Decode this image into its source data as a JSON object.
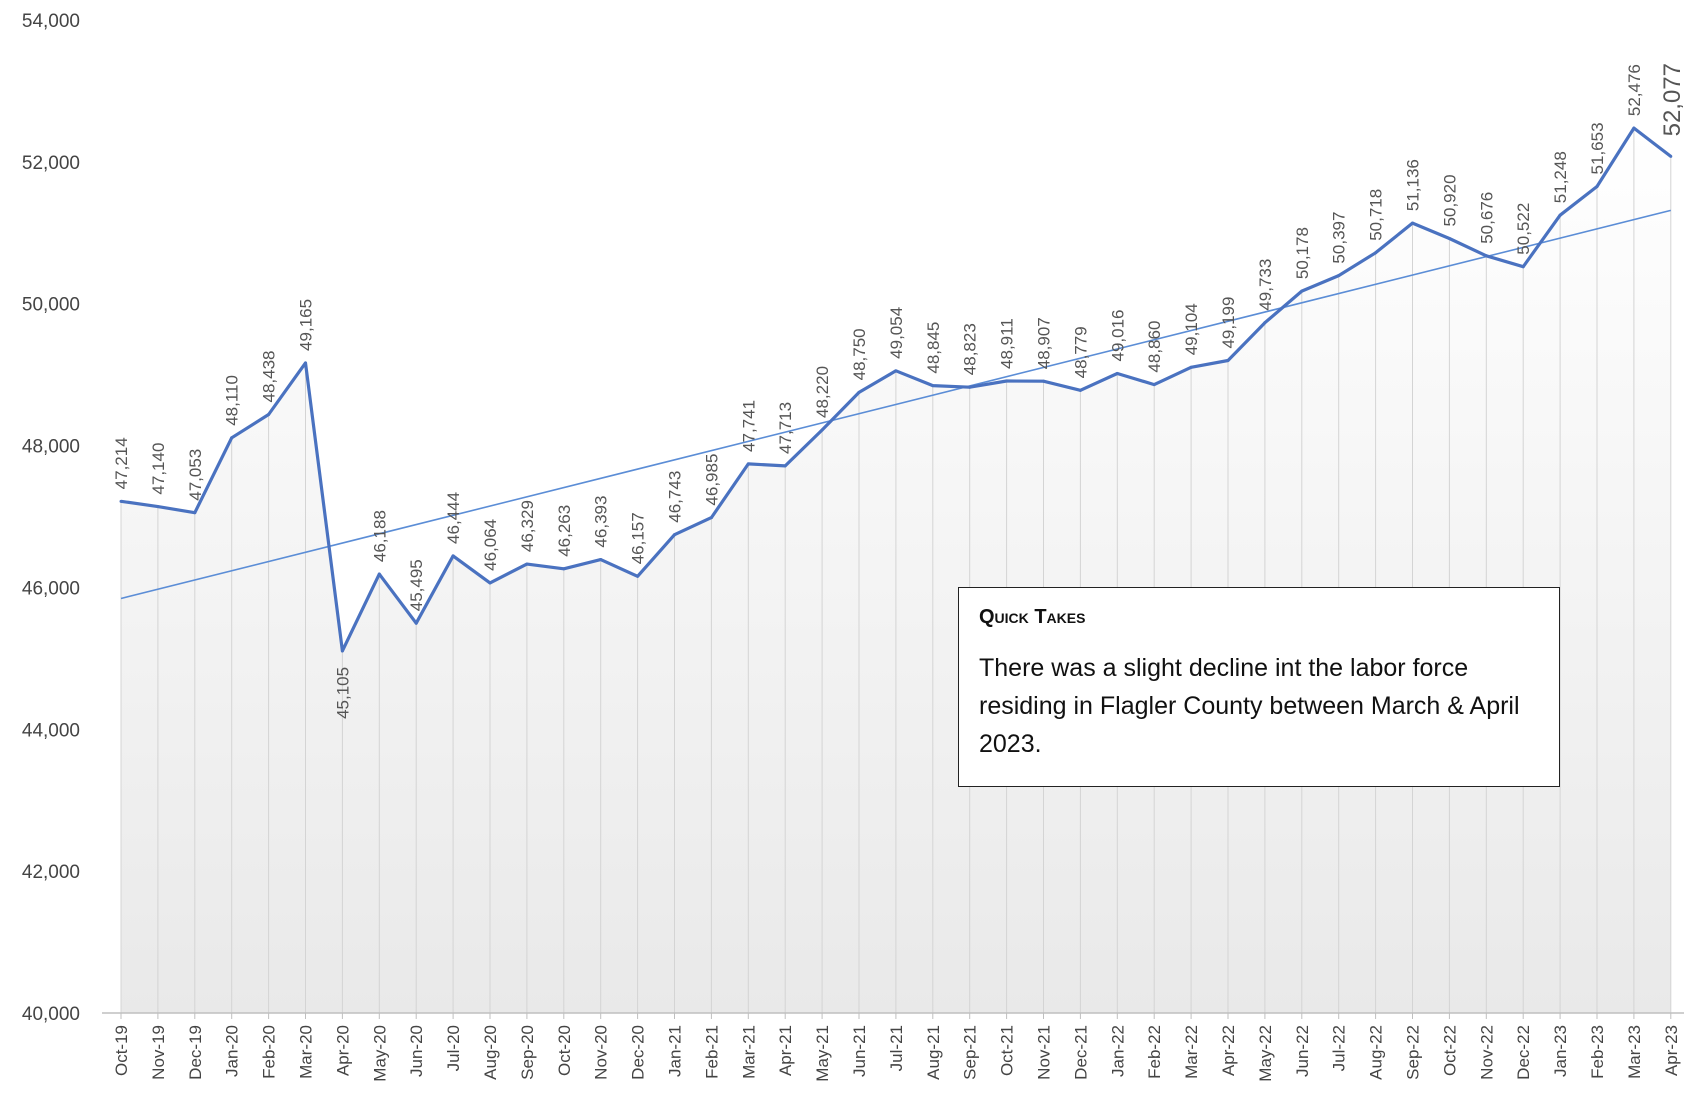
{
  "chart_data": {
    "type": "line",
    "title": "",
    "xlabel": "",
    "ylabel": "",
    "ylim": [
      40000,
      54000
    ],
    "yticks": [
      "40,000",
      "42,000",
      "44,000",
      "46,000",
      "48,000",
      "50,000",
      "52,000",
      "54,000"
    ],
    "categories": [
      "Oct-19",
      "Nov-19",
      "Dec-19",
      "Jan-20",
      "Feb-20",
      "Mar-20",
      "Apr-20",
      "May-20",
      "Jun-20",
      "Jul-20",
      "Aug-20",
      "Sep-20",
      "Oct-20",
      "Nov-20",
      "Dec-20",
      "Jan-21",
      "Feb-21",
      "Mar-21",
      "Apr-21",
      "May-21",
      "Jun-21",
      "Jul-21",
      "Aug-21",
      "Sep-21",
      "Oct-21",
      "Nov-21",
      "Dec-21",
      "Jan-22",
      "Feb-22",
      "Mar-22",
      "Apr-22",
      "May-22",
      "Jun-22",
      "Jul-22",
      "Aug-22",
      "Sep-22",
      "Oct-22",
      "Nov-22",
      "Dec-22",
      "Jan-23",
      "Feb-23",
      "Mar-23",
      "Apr-23"
    ],
    "series": [
      {
        "values": [
          47214,
          47140,
          47053,
          48110,
          48438,
          49165,
          45105,
          46188,
          45495,
          46444,
          46064,
          46329,
          46263,
          46393,
          46157,
          46743,
          46985,
          47741,
          47713,
          48220,
          48750,
          49054,
          48845,
          48823,
          48911,
          48907,
          48779,
          49016,
          48860,
          49104,
          49199,
          49733,
          50178,
          50397,
          50718,
          51136,
          50920,
          50676,
          50522,
          51248,
          51653,
          52476,
          52077
        ],
        "labels": [
          "47,214",
          "47,140",
          "47,053",
          "48,110",
          "48,438",
          "49,165",
          "45,105",
          "46,188",
          "45,495",
          "46,444",
          "46,064",
          "46,329",
          "46,263",
          "46,393",
          "46,157",
          "46,743",
          "46,985",
          "47,741",
          "47,713",
          "48,220",
          "48,750",
          "49,054",
          "48,845",
          "48,823",
          "48,911",
          "48,907",
          "48,779",
          "49,016",
          "48,860",
          "49,104",
          "49,199",
          "49,733",
          "50,178",
          "50,397",
          "50,718",
          "51,136",
          "50,920",
          "50,676",
          "50,522",
          "51,248",
          "51,653",
          "52,476",
          "52,077"
        ]
      }
    ],
    "trendline": {
      "type": "linear"
    },
    "grid": "vertical",
    "colors": {
      "line": "#4a72c0",
      "trend": "#5b8dd6",
      "gridline": "#d4d4d4",
      "area_top": "#ffffff",
      "area_bottom": "#e9e9e9"
    }
  },
  "quick_takes": {
    "title": "Quick Takes",
    "text": "There was a slight decline int the labor force residing in Flagler County between March & April 2023."
  }
}
